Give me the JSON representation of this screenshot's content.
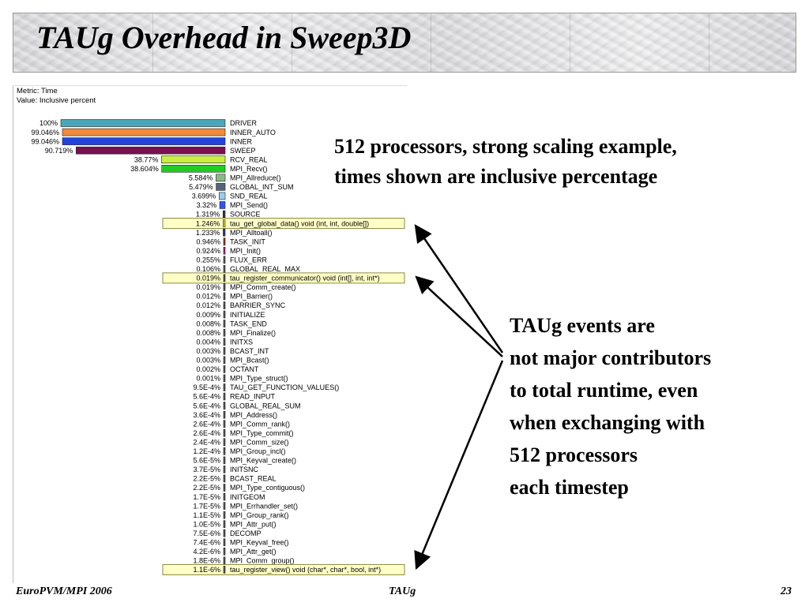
{
  "slide": {
    "title": "TAUg Overhead in Sweep3D",
    "note1": [
      "512 processors, strong scaling example,",
      "times shown are inclusive percentage"
    ],
    "note2": [
      "TAUg events are",
      "not major contributors",
      "to total runtime, even",
      "when exchanging with",
      "512 processors",
      "each timestep"
    ],
    "footer_left": "EuroPVM/MPI 2006",
    "footer_center": "TAUg",
    "footer_right": "23"
  },
  "chart_data": {
    "type": "bar",
    "metric_label": "Metric: Time",
    "value_label": "Value: Inclusive percent",
    "xlim": [
      0,
      100
    ],
    "bars": [
      {
        "label": "100%",
        "value": 100,
        "name": "DRIVER",
        "color": "#4aa6b8"
      },
      {
        "label": "99.046%",
        "value": 99.046,
        "name": "INNER_AUTO",
        "color": "#f08a3c"
      },
      {
        "label": "99.046%",
        "value": 99.046,
        "name": "INNER",
        "color": "#2244dd"
      },
      {
        "label": "90.719%",
        "value": 90.719,
        "name": "SWEEP",
        "color": "#7a1050"
      },
      {
        "label": "38.77%",
        "value": 38.77,
        "name": "RCV_REAL",
        "color": "#c8ee44"
      },
      {
        "label": "38.604%",
        "value": 38.604,
        "name": "MPI_Recv()",
        "color": "#22cc22"
      },
      {
        "label": "5.584%",
        "value": 5.584,
        "name": "MPI_Allreduce()",
        "color": "#88bb88"
      },
      {
        "label": "5.479%",
        "value": 5.479,
        "name": "GLOBAL_INT_SUM",
        "color": "#556677"
      },
      {
        "label": "3.699%",
        "value": 3.699,
        "name": "SND_REAL",
        "color": "#99ccee"
      },
      {
        "label": "3.32%",
        "value": 3.32,
        "name": "MPI_Send()",
        "color": "#3355ee"
      },
      {
        "label": "1.319%",
        "value": 1.319,
        "name": "SOURCE",
        "color": "#333333"
      },
      {
        "label": "1.246%",
        "value": 1.246,
        "name": "tau_get_global_data() void (int, int, double[])",
        "color": "#cccc33",
        "highlight": true
      },
      {
        "label": "1.233%",
        "value": 1.233,
        "name": "MPI_Alltoall()",
        "color": "#333377"
      },
      {
        "label": "0.946%",
        "value": 0.946,
        "name": "TASK_INIT",
        "color": "#8a3a1a"
      },
      {
        "label": "0.924%",
        "value": 0.924,
        "name": "MPI_Init()",
        "color": "#aa2277"
      },
      {
        "label": "0.255%",
        "value": 0.255,
        "name": "FLUX_ERR",
        "color": "#555555"
      },
      {
        "label": "0.106%",
        "value": 0.106,
        "name": "GLOBAL_REAL_MAX",
        "color": "#555555"
      },
      {
        "label": "0.019%",
        "value": 0.019,
        "name": "tau_register_communicator() void (int[], int, int*)",
        "color": "#555555",
        "highlight": true
      },
      {
        "label": "0.019%",
        "value": 0.019,
        "name": "MPI_Comm_create()",
        "color": "#555555"
      },
      {
        "label": "0.012%",
        "value": 0.012,
        "name": "MPI_Barrier()",
        "color": "#555555"
      },
      {
        "label": "0.012%",
        "value": 0.012,
        "name": "BARRIER_SYNC",
        "color": "#555555"
      },
      {
        "label": "0.009%",
        "value": 0.009,
        "name": "INITIALIZE",
        "color": "#555555"
      },
      {
        "label": "0.008%",
        "value": 0.008,
        "name": "TASK_END",
        "color": "#555555"
      },
      {
        "label": "0.008%",
        "value": 0.008,
        "name": "MPI_Finalize()",
        "color": "#555555"
      },
      {
        "label": "0.004%",
        "value": 0.004,
        "name": "INITXS",
        "color": "#555555"
      },
      {
        "label": "0.003%",
        "value": 0.003,
        "name": "BCAST_INT",
        "color": "#555555"
      },
      {
        "label": "0.003%",
        "value": 0.003,
        "name": "MPI_Bcast()",
        "color": "#555555"
      },
      {
        "label": "0.002%",
        "value": 0.002,
        "name": "OCTANT",
        "color": "#555555"
      },
      {
        "label": "0.001%",
        "value": 0.001,
        "name": "MPI_Type_struct()",
        "color": "#555555"
      },
      {
        "label": "9.5E-4%",
        "value": 0.00095,
        "name": "TAU_GET_FUNCTION_VALUES()",
        "color": "#555555"
      },
      {
        "label": "5.6E-4%",
        "value": 0.00056,
        "name": "READ_INPUT",
        "color": "#555555"
      },
      {
        "label": "5.6E-4%",
        "value": 0.00056,
        "name": "GLOBAL_REAL_SUM",
        "color": "#555555"
      },
      {
        "label": "3.6E-4%",
        "value": 0.00036,
        "name": "MPI_Address()",
        "color": "#555555"
      },
      {
        "label": "2.6E-4%",
        "value": 0.00026,
        "name": "MPI_Comm_rank()",
        "color": "#555555"
      },
      {
        "label": "2.6E-4%",
        "value": 0.00026,
        "name": "MPI_Type_commit()",
        "color": "#555555"
      },
      {
        "label": "2.4E-4%",
        "value": 0.00024,
        "name": "MPI_Comm_size()",
        "color": "#555555"
      },
      {
        "label": "1.2E-4%",
        "value": 0.00012,
        "name": "MPI_Group_incl()",
        "color": "#555555"
      },
      {
        "label": "5.6E-5%",
        "value": 5.6e-05,
        "name": "MPI_Keyval_create()",
        "color": "#555555"
      },
      {
        "label": "3.7E-5%",
        "value": 3.7e-05,
        "name": "INITSNC",
        "color": "#555555"
      },
      {
        "label": "2.2E-5%",
        "value": 2.2e-05,
        "name": "BCAST_REAL",
        "color": "#555555"
      },
      {
        "label": "2.2E-5%",
        "value": 2.2e-05,
        "name": "MPI_Type_contiguous()",
        "color": "#555555"
      },
      {
        "label": "1.7E-5%",
        "value": 1.7e-05,
        "name": "INITGEOM",
        "color": "#555555"
      },
      {
        "label": "1.7E-5%",
        "value": 1.7e-05,
        "name": "MPI_Errhandler_set()",
        "color": "#555555"
      },
      {
        "label": "1.1E-5%",
        "value": 1.1e-05,
        "name": "MPI_Group_rank()",
        "color": "#555555"
      },
      {
        "label": "1.0E-5%",
        "value": 1e-05,
        "name": "MPI_Attr_put()",
        "color": "#555555"
      },
      {
        "label": "7.5E-6%",
        "value": 7.5e-06,
        "name": "DECOMP",
        "color": "#555555"
      },
      {
        "label": "7.4E-6%",
        "value": 7.4e-06,
        "name": "MPI_Keyval_free()",
        "color": "#555555"
      },
      {
        "label": "4.2E-6%",
        "value": 4.2e-06,
        "name": "MPI_Attr_get()",
        "color": "#555555"
      },
      {
        "label": "1.8E-6%",
        "value": 1.8e-06,
        "name": "MPI_Comm_group()",
        "color": "#555555"
      },
      {
        "label": "1.1E-6%",
        "value": 1.1e-06,
        "name": "tau_register_view() void (char*, char*, bool, int*)",
        "color": "#555555",
        "highlight": true
      }
    ]
  }
}
